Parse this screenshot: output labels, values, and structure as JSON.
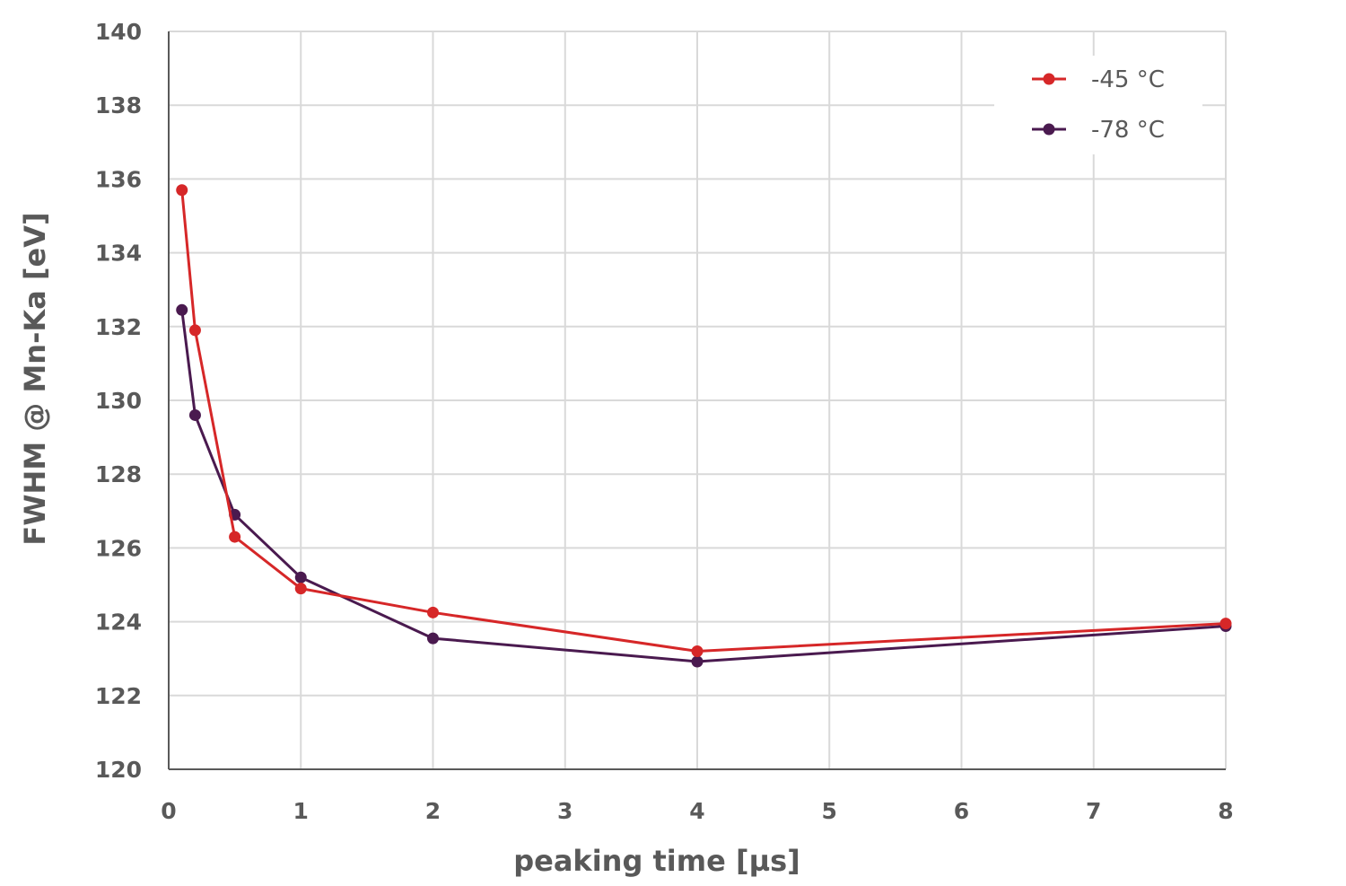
{
  "chart_data": {
    "type": "line",
    "title": "",
    "xlabel": "peaking time [µs]",
    "ylabel": "FWHM @ Mn-Ka [eV]",
    "x_tick_labels": [
      "0",
      "1",
      "2",
      "3",
      "4",
      "5",
      "6",
      "7",
      "8"
    ],
    "y_ticks": [
      120,
      122,
      124,
      126,
      128,
      130,
      132,
      134,
      136,
      138,
      140
    ],
    "ylim": [
      120,
      140
    ],
    "grid": true,
    "legend_position": "top-right",
    "x": [
      0.1,
      0.2,
      0.5,
      1,
      2,
      4,
      8
    ],
    "series": [
      {
        "name": "-45 °C",
        "color": "#d62728",
        "values": [
          135.7,
          131.9,
          126.3,
          124.9,
          124.25,
          123.2,
          123.95
        ]
      },
      {
        "name": "-78 °C",
        "color": "#4a1a4f",
        "values": [
          132.45,
          129.6,
          126.9,
          125.2,
          123.55,
          122.92,
          123.88
        ]
      }
    ]
  }
}
